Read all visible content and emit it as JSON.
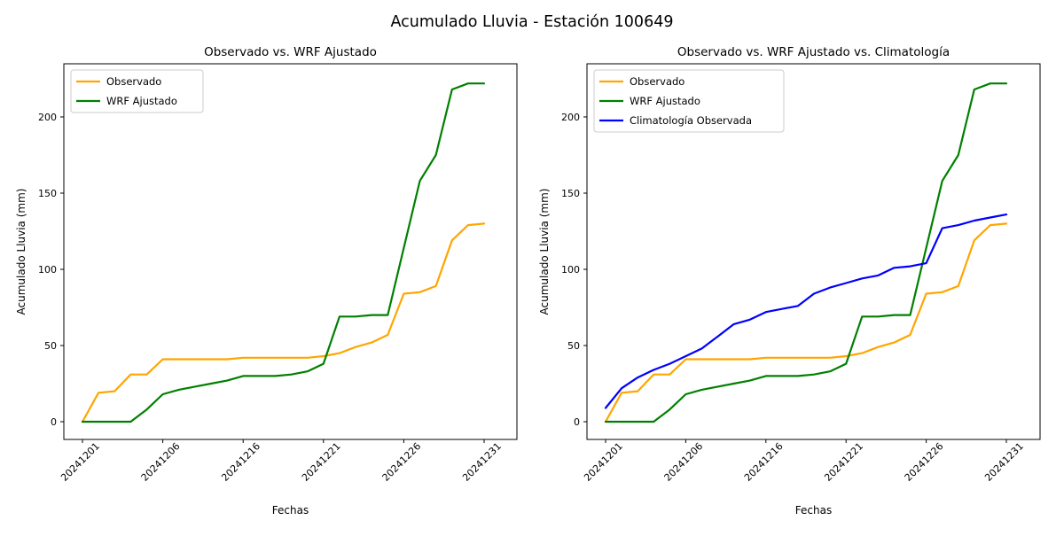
{
  "figure": {
    "suptitle": "Acumulado Lluvia - Estación 100649",
    "background": "#ffffff",
    "text_color": "#000000",
    "spine_color": "#000000",
    "legend_border_color": "#cccccc"
  },
  "chart_data": [
    {
      "type": "line",
      "title": "Observado vs. WRF Ajustado",
      "xlabel": "Fechas",
      "ylabel": "Acumulado Lluvia (mm)",
      "grid": false,
      "legend_position": "upper left",
      "ylim": [
        -12,
        235
      ],
      "yticks": [
        0,
        50,
        100,
        150,
        200
      ],
      "xticks": [
        "20241201",
        "20241206",
        "20241216",
        "20241221",
        "20241226",
        "20241231"
      ],
      "x": [
        "20241201",
        "20241202",
        "20241203",
        "20241204",
        "20241205",
        "20241206",
        "20241207",
        "20241208",
        "20241209",
        "20241210",
        "20241216",
        "20241217",
        "20241218",
        "20241219",
        "20241220",
        "20241221",
        "20241222",
        "20241223",
        "20241224",
        "20241225",
        "20241226",
        "20241227",
        "20241228",
        "20241229",
        "20241230",
        "20241231"
      ],
      "series": [
        {
          "name": "Observado",
          "color": "#FFA500",
          "values": [
            0,
            19,
            20,
            31,
            31,
            41,
            41,
            41,
            41,
            41,
            42,
            42,
            42,
            42,
            42,
            43,
            45,
            49,
            52,
            57,
            84,
            85,
            89,
            119,
            129,
            130
          ]
        },
        {
          "name": "WRF Ajustado",
          "color": "#008000",
          "values": [
            0,
            0,
            0,
            0,
            8,
            18,
            21,
            23,
            25,
            27,
            30,
            30,
            30,
            31,
            33,
            38,
            69,
            69,
            70,
            70,
            114,
            158,
            175,
            218,
            222,
            222
          ]
        }
      ]
    },
    {
      "type": "line",
      "title": "Observado vs. WRF Ajustado vs. Climatología",
      "xlabel": "Fechas",
      "ylabel": "Acumulado Lluvia (mm)",
      "grid": false,
      "legend_position": "upper left",
      "ylim": [
        -12,
        235
      ],
      "yticks": [
        0,
        50,
        100,
        150,
        200
      ],
      "xticks": [
        "20241201",
        "20241206",
        "20241216",
        "20241221",
        "20241226",
        "20241231"
      ],
      "x": [
        "20241201",
        "20241202",
        "20241203",
        "20241204",
        "20241205",
        "20241206",
        "20241207",
        "20241208",
        "20241209",
        "20241210",
        "20241216",
        "20241217",
        "20241218",
        "20241219",
        "20241220",
        "20241221",
        "20241222",
        "20241223",
        "20241224",
        "20241225",
        "20241226",
        "20241227",
        "20241228",
        "20241229",
        "20241230",
        "20241231"
      ],
      "series": [
        {
          "name": "Observado",
          "color": "#FFA500",
          "values": [
            0,
            19,
            20,
            31,
            31,
            41,
            41,
            41,
            41,
            41,
            42,
            42,
            42,
            42,
            42,
            43,
            45,
            49,
            52,
            57,
            84,
            85,
            89,
            119,
            129,
            130
          ]
        },
        {
          "name": "WRF Ajustado",
          "color": "#008000",
          "values": [
            0,
            0,
            0,
            0,
            8,
            18,
            21,
            23,
            25,
            27,
            30,
            30,
            30,
            31,
            33,
            38,
            69,
            69,
            70,
            70,
            114,
            158,
            175,
            218,
            222,
            222
          ]
        },
        {
          "name": "Climatología Observada",
          "color": "#0000FF",
          "values": [
            9,
            22,
            29,
            34,
            38,
            43,
            48,
            56,
            64,
            67,
            72,
            74,
            76,
            84,
            88,
            91,
            94,
            96,
            101,
            102,
            104,
            127,
            129,
            132,
            134,
            136
          ]
        }
      ]
    }
  ]
}
